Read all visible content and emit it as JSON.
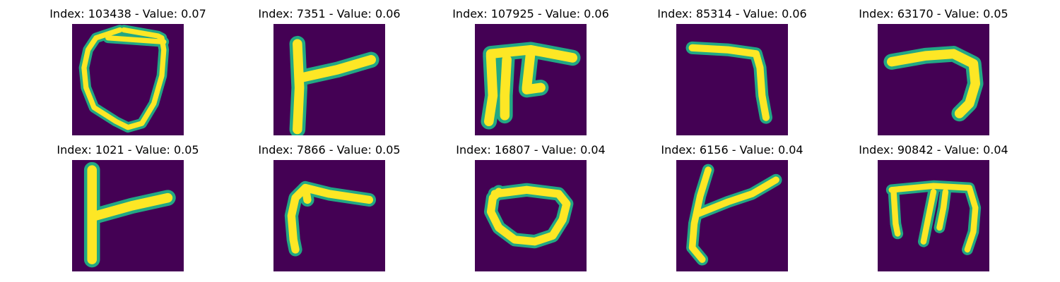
{
  "colors": {
    "background": "#440154",
    "stroke": "#fde725",
    "edge": "#22a884"
  },
  "panels": [
    {
      "title": "Index: 103438 - Value: 0.07",
      "glyph": "loop-shield"
    },
    {
      "title": "Index: 7351 - Value: 0.06",
      "glyph": "vertical-with-right-arm"
    },
    {
      "title": "Index: 107925 - Value: 0.06",
      "glyph": "three-leg-bar"
    },
    {
      "title": "Index: 85314 - Value: 0.06",
      "glyph": "top-bar-right-down"
    },
    {
      "title": "Index: 63170 - Value: 0.05",
      "glyph": "curved-right-down"
    },
    {
      "title": "Index: 1021 - Value: 0.05",
      "glyph": "vertical-with-right-arm"
    },
    {
      "title": "Index: 7866 - Value: 0.05",
      "glyph": "curved-left-down"
    },
    {
      "title": "Index: 16807 - Value: 0.04",
      "glyph": "oval"
    },
    {
      "title": "Index: 6156 - Value: 0.04",
      "glyph": "slanted-vertical-with-arm"
    },
    {
      "title": "Index: 90842 - Value: 0.04",
      "glyph": "four-leg-bar"
    }
  ]
}
